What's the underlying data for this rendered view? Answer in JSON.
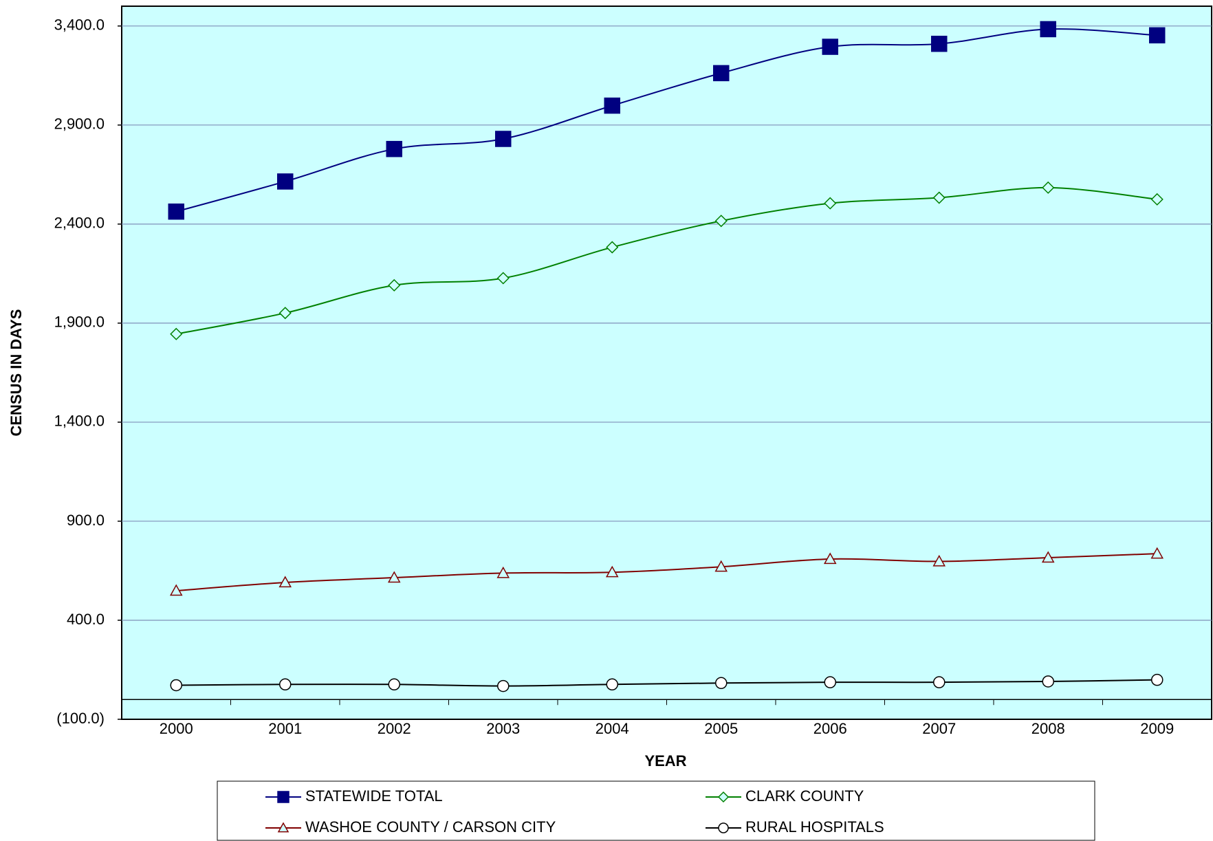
{
  "chart_data": {
    "type": "line",
    "y_label": "CENSUS IN DAYS",
    "x_label": "YEAR",
    "categories": [
      "2000",
      "2001",
      "2002",
      "2003",
      "2004",
      "2005",
      "2006",
      "2007",
      "2008",
      "2009"
    ],
    "series": [
      {
        "name": "STATEWIDE TOTAL",
        "color": "#000080",
        "marker": "square",
        "values": [
          2463,
          2615,
          2779,
          2830,
          2998,
          3162,
          3295,
          3310,
          3384,
          3353
        ]
      },
      {
        "name": "CLARK COUNTY",
        "color": "#008000",
        "marker": "diamond",
        "values": [
          1845,
          1951,
          2091,
          2127,
          2283,
          2416,
          2505,
          2533,
          2584,
          2525
        ]
      },
      {
        "name": "WASHOE COUNTY / CARSON CITY",
        "color": "#800000",
        "marker": "triangle",
        "values": [
          549,
          591,
          615,
          638,
          642,
          670,
          709,
          697,
          716,
          736
        ]
      },
      {
        "name": "RURAL HOSPITALS",
        "color": "#000000",
        "marker": "circle",
        "values": [
          72,
          76,
          76,
          68,
          76,
          83,
          87,
          87,
          91,
          99
        ]
      }
    ],
    "ylim": [
      -100,
      3500
    ],
    "yticks": [
      {
        "value": -100,
        "label": "(100.0)"
      },
      {
        "value": 400,
        "label": "400.0"
      },
      {
        "value": 900,
        "label": "900.0"
      },
      {
        "value": 1400,
        "label": "1,400.0"
      },
      {
        "value": 1900,
        "label": "1,900.0"
      },
      {
        "value": 2400,
        "label": "2,400.0"
      },
      {
        "value": 2900,
        "label": "2,900.0"
      },
      {
        "value": 3400,
        "label": "3,400.0"
      }
    ],
    "grid": true,
    "smooth": true,
    "plot_background": "#ccffff",
    "legend": "bottom"
  }
}
